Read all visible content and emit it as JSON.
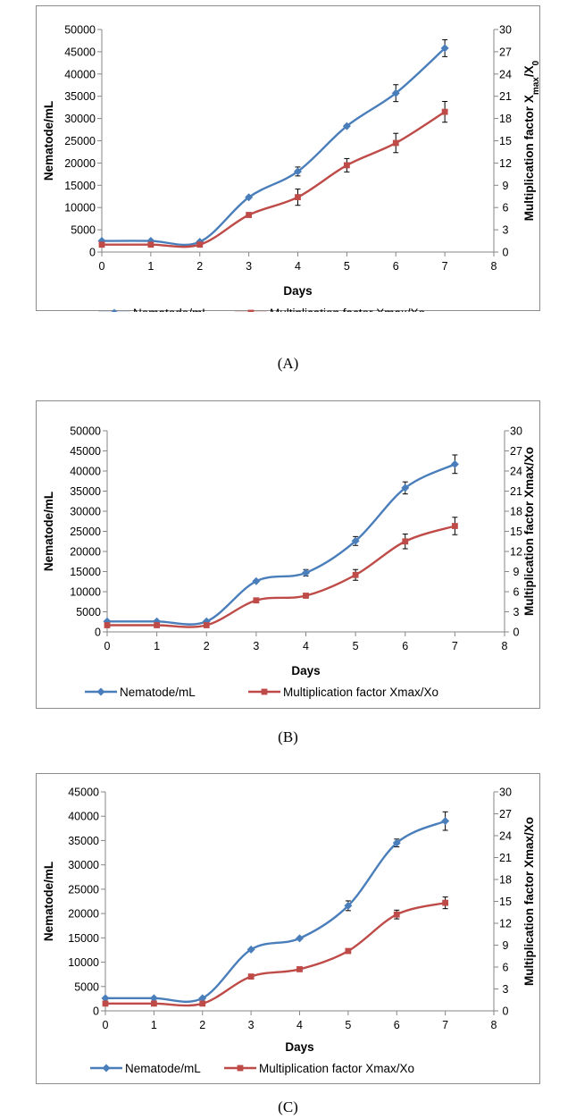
{
  "colors": {
    "nematode": "#4A7EBB",
    "multiplication": "#BE4B48",
    "axis": "#868686",
    "frame": "#8C8C8C"
  },
  "panels": [
    {
      "caption": "(A)",
      "legend": [
        "Nematode/mL",
        "Multiplication factor Xmax/Xo"
      ],
      "y2label_rich": true
    },
    {
      "caption": "(B)",
      "legend": [
        "Nematode/mL",
        "Multiplication factor Xmax/Xo"
      ],
      "y2label_rich": false
    },
    {
      "caption": "(C)",
      "legend": [
        "Nematode/mL",
        "Multiplication factor Xmax/Xo"
      ],
      "y2label_rich": false
    }
  ],
  "chart_data": [
    {
      "type": "line",
      "xlabel": "Days",
      "ylabel": "Nematode/mL",
      "y2label": "Multiplication factor Xmax/X0",
      "xlim": [
        0,
        8
      ],
      "ylim": [
        0,
        50000
      ],
      "y2lim": [
        0,
        30
      ],
      "xticks": [
        0,
        1,
        2,
        3,
        4,
        5,
        6,
        7,
        8
      ],
      "yticks": [
        0,
        5000,
        10000,
        15000,
        20000,
        25000,
        30000,
        35000,
        40000,
        45000,
        50000
      ],
      "y2ticks": [
        0,
        3,
        6,
        9,
        12,
        15,
        18,
        21,
        24,
        27,
        30
      ],
      "x": [
        0,
        1,
        2,
        3,
        4,
        5,
        6,
        7
      ],
      "series": [
        {
          "name": "Nematode/mL",
          "axis": "left",
          "marker": "diamond",
          "values": [
            2500,
            2500,
            2300,
            12300,
            18100,
            28300,
            35700,
            45800
          ],
          "errors": [
            0,
            0,
            0,
            0,
            1000,
            0,
            1900,
            1900
          ]
        },
        {
          "name": "Multiplication factor Xmax/Xo",
          "axis": "right",
          "marker": "square",
          "values": [
            1,
            1,
            1,
            5,
            7.4,
            11.7,
            14.7,
            18.9
          ],
          "errors": [
            0,
            0,
            0,
            0,
            1.1,
            0.9,
            1.3,
            1.4
          ]
        }
      ]
    },
    {
      "type": "line",
      "xlabel": "Days",
      "ylabel": "Nematode/mL",
      "y2label": "Multiplication factor Xmax/Xo",
      "xlim": [
        0,
        8
      ],
      "ylim": [
        0,
        50000
      ],
      "y2lim": [
        0,
        30
      ],
      "xticks": [
        0,
        1,
        2,
        3,
        4,
        5,
        6,
        7,
        8
      ],
      "yticks": [
        0,
        5000,
        10000,
        15000,
        20000,
        25000,
        30000,
        35000,
        40000,
        45000,
        50000
      ],
      "y2ticks": [
        0,
        3,
        6,
        9,
        12,
        15,
        18,
        21,
        24,
        27,
        30
      ],
      "x": [
        0,
        1,
        2,
        3,
        4,
        5,
        6,
        7
      ],
      "series": [
        {
          "name": "Nematode/mL",
          "axis": "left",
          "marker": "diamond",
          "values": [
            2600,
            2600,
            2600,
            12600,
            14700,
            22600,
            35800,
            41700
          ],
          "errors": [
            0,
            0,
            0,
            0,
            800,
            1100,
            1500,
            2300
          ]
        },
        {
          "name": "Multiplication factor Xmax/Xo",
          "axis": "right",
          "marker": "square",
          "values": [
            1,
            1,
            1,
            4.7,
            5.4,
            8.5,
            13.5,
            15.8
          ],
          "errors": [
            0,
            0,
            0,
            0,
            0,
            0.8,
            1.1,
            1.3
          ]
        }
      ]
    },
    {
      "type": "line",
      "xlabel": "Days",
      "ylabel": "Nematode/mL",
      "y2label": "Multiplication factor Xmax/Xo",
      "xlim": [
        0,
        8
      ],
      "ylim": [
        0,
        45000
      ],
      "y2lim": [
        0,
        30
      ],
      "xticks": [
        0,
        1,
        2,
        3,
        4,
        5,
        6,
        7,
        8
      ],
      "yticks": [
        0,
        5000,
        10000,
        15000,
        20000,
        25000,
        30000,
        35000,
        40000,
        45000
      ],
      "y2ticks": [
        0,
        3,
        6,
        9,
        12,
        15,
        18,
        21,
        24,
        27,
        30
      ],
      "x": [
        0,
        1,
        2,
        3,
        4,
        5,
        6,
        7
      ],
      "series": [
        {
          "name": "Nematode/mL",
          "axis": "left",
          "marker": "diamond",
          "values": [
            2600,
            2600,
            2600,
            12600,
            14900,
            21600,
            34500,
            39000
          ],
          "errors": [
            0,
            0,
            0,
            0,
            0,
            1000,
            800,
            1900
          ]
        },
        {
          "name": "Multiplication factor Xmax/Xo",
          "axis": "right",
          "marker": "square",
          "values": [
            1,
            1,
            1,
            4.7,
            5.7,
            8.2,
            13.2,
            14.8
          ],
          "errors": [
            0,
            0,
            0,
            0,
            0,
            0,
            0.6,
            0.8
          ]
        }
      ]
    }
  ]
}
